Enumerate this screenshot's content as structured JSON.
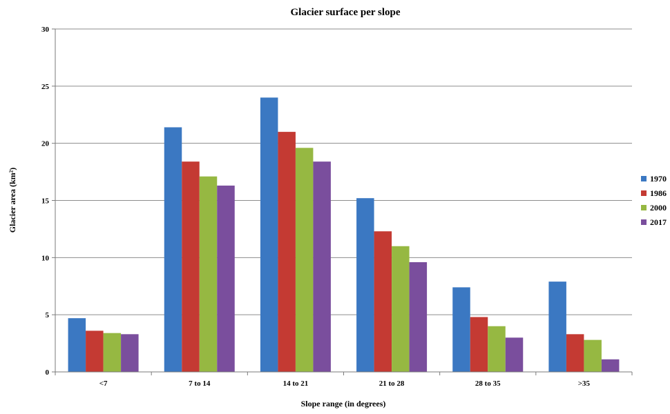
{
  "chart_data": {
    "type": "bar",
    "title": "Glacier surface per slope",
    "xlabel": "Slope range (in degrees)",
    "ylabel": "Glacier area (km²)",
    "categories": [
      "<7",
      "7 to 14",
      "14 to 21",
      "21 to 28",
      "28 to 35",
      ">35"
    ],
    "ylim": [
      0,
      30
    ],
    "yticks": [
      0,
      5,
      10,
      15,
      20,
      25,
      30
    ],
    "grid": true,
    "legend_position": "right",
    "series": [
      {
        "name": "1970",
        "color": "#3B78C2",
        "values": [
          4.7,
          21.4,
          24.0,
          15.2,
          7.4,
          7.9
        ]
      },
      {
        "name": "1986",
        "color": "#C43A33",
        "values": [
          3.6,
          18.4,
          21.0,
          12.3,
          4.8,
          3.3
        ]
      },
      {
        "name": "2000",
        "color": "#96B842",
        "values": [
          3.4,
          17.1,
          19.6,
          11.0,
          4.0,
          2.8
        ]
      },
      {
        "name": "2017",
        "color": "#7A4E9D",
        "values": [
          3.3,
          16.3,
          18.4,
          9.6,
          3.0,
          1.1
        ]
      }
    ]
  }
}
